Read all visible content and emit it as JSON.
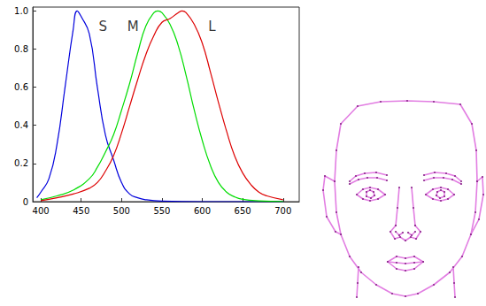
{
  "chart_data": {
    "type": "line",
    "xlim": [
      390,
      720
    ],
    "xticks": [
      400,
      450,
      500,
      550,
      600,
      650,
      700
    ],
    "ylim": [
      0,
      1.02
    ],
    "yticks": [
      0,
      {
        "value": 0.2,
        "label": "0.2"
      },
      {
        "value": 0.4,
        "label": "0.4"
      },
      {
        "value": 0.6,
        "label": "0.6"
      },
      {
        "value": 0.8,
        "label": "0.8"
      },
      {
        "value": 1,
        "label": "1.0"
      }
    ],
    "grid": false,
    "series": [
      {
        "name": "S",
        "color": "#0000dd",
        "label_at": [
          477,
          0.92
        ],
        "x": [
          395,
          400,
          410,
          420,
          430,
          440,
          445,
          450,
          460,
          470,
          480,
          490,
          500,
          510,
          520,
          530,
          550,
          600,
          650,
          700
        ],
        "values": [
          0.02,
          0.05,
          0.12,
          0.3,
          0.6,
          0.9,
          1.0,
          0.97,
          0.88,
          0.6,
          0.35,
          0.22,
          0.1,
          0.04,
          0.02,
          0.01,
          0.003,
          0,
          0,
          0
        ]
      },
      {
        "name": "M",
        "color": "#00dd00",
        "label_at": [
          514,
          0.92
        ],
        "x": [
          400,
          420,
          440,
          460,
          470,
          480,
          490,
          500,
          510,
          520,
          530,
          540,
          545,
          550,
          560,
          570,
          580,
          590,
          600,
          610,
          620,
          630,
          640,
          650,
          670,
          700
        ],
        "values": [
          0.01,
          0.03,
          0.06,
          0.12,
          0.18,
          0.26,
          0.35,
          0.48,
          0.62,
          0.78,
          0.92,
          0.99,
          1.0,
          0.99,
          0.93,
          0.82,
          0.66,
          0.48,
          0.32,
          0.19,
          0.1,
          0.05,
          0.025,
          0.012,
          0.004,
          0.001
        ]
      },
      {
        "name": "L",
        "color": "#dd0000",
        "label_at": [
          612,
          0.92
        ],
        "x": [
          400,
          420,
          440,
          460,
          470,
          480,
          490,
          500,
          510,
          520,
          530,
          540,
          550,
          560,
          570,
          575,
          580,
          590,
          600,
          610,
          620,
          630,
          640,
          650,
          660,
          670,
          680,
          700
        ],
        "values": [
          0.005,
          0.02,
          0.04,
          0.07,
          0.1,
          0.16,
          0.24,
          0.36,
          0.5,
          0.64,
          0.77,
          0.87,
          0.94,
          0.96,
          0.99,
          1.0,
          0.99,
          0.93,
          0.83,
          0.68,
          0.52,
          0.37,
          0.24,
          0.15,
          0.09,
          0.05,
          0.03,
          0.01
        ]
      }
    ]
  },
  "diagram": {
    "type": "face_outline",
    "color": "#e27ee2"
  }
}
